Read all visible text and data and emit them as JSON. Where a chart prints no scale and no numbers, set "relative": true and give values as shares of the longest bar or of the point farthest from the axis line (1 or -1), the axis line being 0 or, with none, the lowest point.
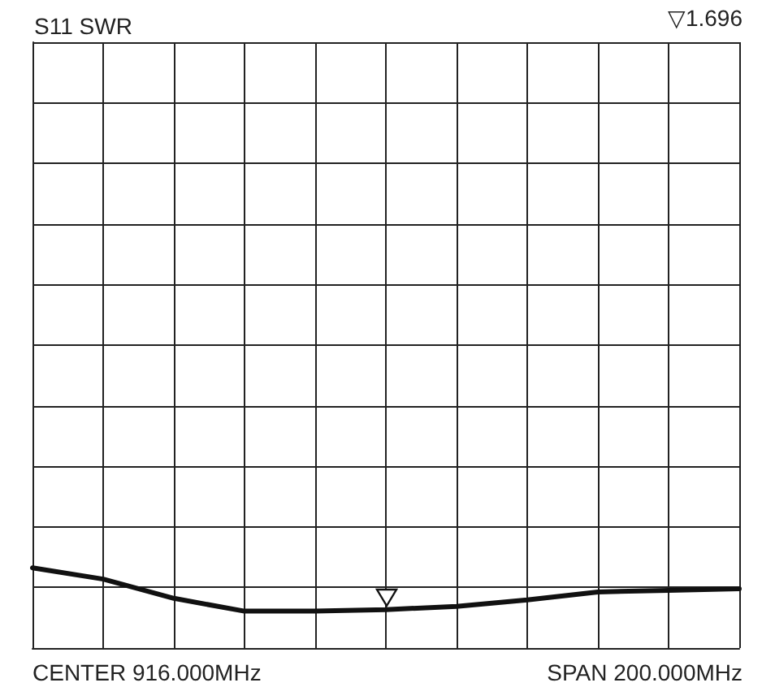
{
  "chart_data": {
    "type": "line",
    "title": "S11 SWR",
    "relative": true,
    "categories": [
      null,
      null,
      null,
      null,
      null,
      null,
      null,
      null,
      null,
      null,
      null
    ],
    "series": [
      {
        "color": "#111111",
        "values": [
          1,
          0.86,
          0.62,
          0.46,
          0.46,
          0.48,
          0.52,
          0.6,
          0.7,
          0.72,
          0.74
        ]
      }
    ],
    "grid": true,
    "marker": "none",
    "line_style": "solid",
    "annotations": [
      "▽1.696",
      "CENTER 916.000MHz",
      "SPAN 200.000MHz"
    ]
  }
}
